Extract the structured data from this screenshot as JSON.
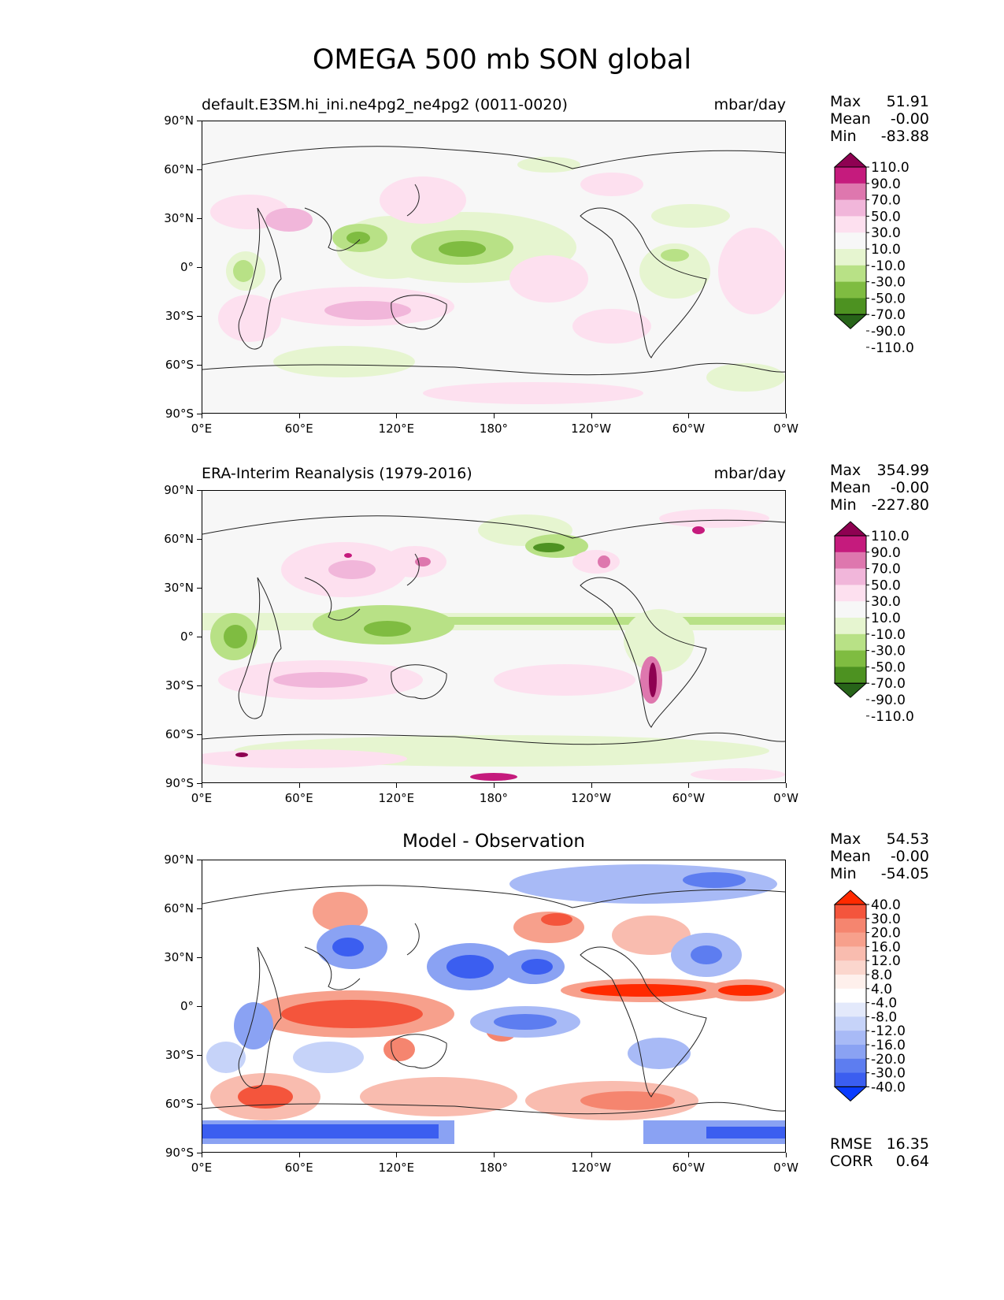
{
  "title": "OMEGA 500 mb SON global",
  "x_ticks": [
    "0°E",
    "60°E",
    "120°E",
    "180°",
    "120°W",
    "60°W",
    "0°W"
  ],
  "y_ticks": [
    "90°N",
    "60°N",
    "30°N",
    "0°",
    "30°S",
    "60°S",
    "90°S"
  ],
  "panels": [
    {
      "id": "model",
      "subtitle": "default.E3SM.hi_ini.ne4pg2_ne4pg2 (0011-0020)",
      "units": "mbar/day",
      "stats": [
        {
          "label": "Max",
          "value": "51.91"
        },
        {
          "label": "Mean",
          "value": "-0.00"
        },
        {
          "label": "Min",
          "value": "-83.88"
        }
      ],
      "colorbar_labels": [
        "110.0",
        "90.0",
        "70.0",
        "50.0",
        "30.0",
        "10.0",
        "-10.0",
        "-30.0",
        "-50.0",
        "-70.0",
        "-90.0",
        "-110.0"
      ],
      "colorbar_colors": [
        "#8e0152",
        "#c51b7d",
        "#de77ae",
        "#f1b6da",
        "#fde0ef",
        "#f7f7f7",
        "#e6f5d0",
        "#b8e186",
        "#7fbc41",
        "#4d9221",
        "#276419"
      ]
    },
    {
      "id": "obs",
      "subtitle": "ERA-Interim Reanalysis (1979-2016)",
      "units": "mbar/day",
      "stats": [
        {
          "label": "Max",
          "value": "354.99"
        },
        {
          "label": "Mean",
          "value": "-0.00"
        },
        {
          "label": "Min",
          "value": "-227.80"
        }
      ],
      "colorbar_labels": [
        "110.0",
        "90.0",
        "70.0",
        "50.0",
        "30.0",
        "10.0",
        "-10.0",
        "-30.0",
        "-50.0",
        "-70.0",
        "-90.0",
        "-110.0"
      ],
      "colorbar_colors": [
        "#8e0152",
        "#c51b7d",
        "#de77ae",
        "#f1b6da",
        "#fde0ef",
        "#f7f7f7",
        "#e6f5d0",
        "#b8e186",
        "#7fbc41",
        "#4d9221",
        "#276419"
      ]
    },
    {
      "id": "diff",
      "title": "Model - Observation",
      "stats": [
        {
          "label": "Max",
          "value": "54.53"
        },
        {
          "label": "Mean",
          "value": "-0.00"
        },
        {
          "label": "Min",
          "value": "-54.05"
        }
      ],
      "colorbar_labels": [
        "40.0",
        "30.0",
        "20.0",
        "16.0",
        "12.0",
        "8.0",
        "4.0",
        "-4.0",
        "-8.0",
        "-12.0",
        "-16.0",
        "-20.0",
        "-30.0",
        "-40.0"
      ],
      "colorbar_colors": [
        "#ff2a00",
        "#f4553c",
        "#f5856f",
        "#f7a08c",
        "#f9bcaf",
        "#fbd6cd",
        "#fef0ec",
        "#ffffff",
        "#e3e9fb",
        "#c6d3f9",
        "#a8baf6",
        "#8aa2f3",
        "#5d7df0",
        "#3b5ef0",
        "#0a3cff"
      ],
      "metrics": [
        {
          "label": "RMSE",
          "value": "16.35"
        },
        {
          "label": "CORR",
          "value": "0.64"
        }
      ]
    }
  ]
}
